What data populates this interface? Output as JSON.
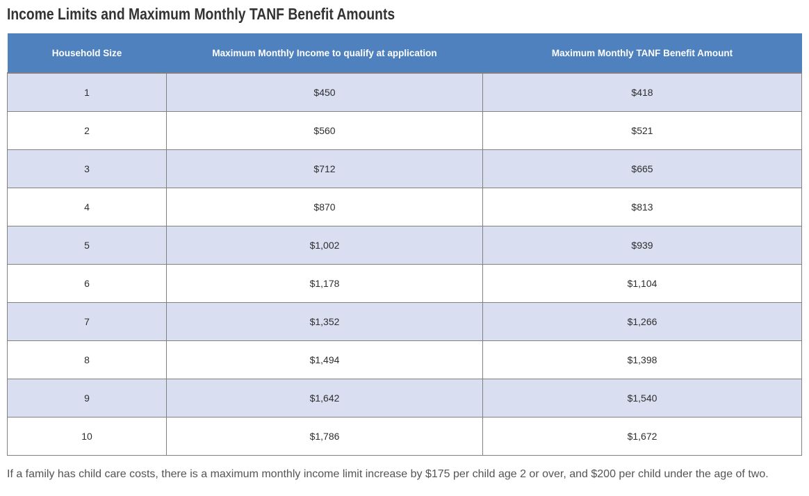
{
  "page_title": "Income Limits and Maximum Monthly TANF Benefit Amounts",
  "table": {
    "headers": [
      "Household Size",
      "Maximum Monthly Income to qualify at application",
      "Maximum Monthly TANF Benefit Amount"
    ],
    "rows": [
      {
        "household_size": "1",
        "max_income": "$450",
        "max_benefit": "$418"
      },
      {
        "household_size": "2",
        "max_income": "$560",
        "max_benefit": "$521"
      },
      {
        "household_size": "3",
        "max_income": "$712",
        "max_benefit": "$665"
      },
      {
        "household_size": "4",
        "max_income": "$870",
        "max_benefit": "$813"
      },
      {
        "household_size": "5",
        "max_income": "$1,002",
        "max_benefit": "$939"
      },
      {
        "household_size": "6",
        "max_income": "$1,178",
        "max_benefit": "$1,104"
      },
      {
        "household_size": "7",
        "max_income": "$1,352",
        "max_benefit": "$1,266"
      },
      {
        "household_size": "8",
        "max_income": "$1,494",
        "max_benefit": "$1,398"
      },
      {
        "household_size": "9",
        "max_income": "$1,642",
        "max_benefit": "$1,540"
      },
      {
        "household_size": "10",
        "max_income": "$1,786",
        "max_benefit": "$1,672"
      }
    ]
  },
  "footnote": "If a family has child care costs, there is a maximum monthly income limit increase by $175 per child age 2 or over, and $200 per child under the age of two.",
  "colors": {
    "header_bg": "#4e81bd",
    "header_text": "#ffffff",
    "row_alt_bg": "#d9def1",
    "row_bg": "#ffffff",
    "border": "#808080",
    "title_text": "#333333",
    "cell_text": "#2e2e2e",
    "footnote_text": "#545454"
  }
}
